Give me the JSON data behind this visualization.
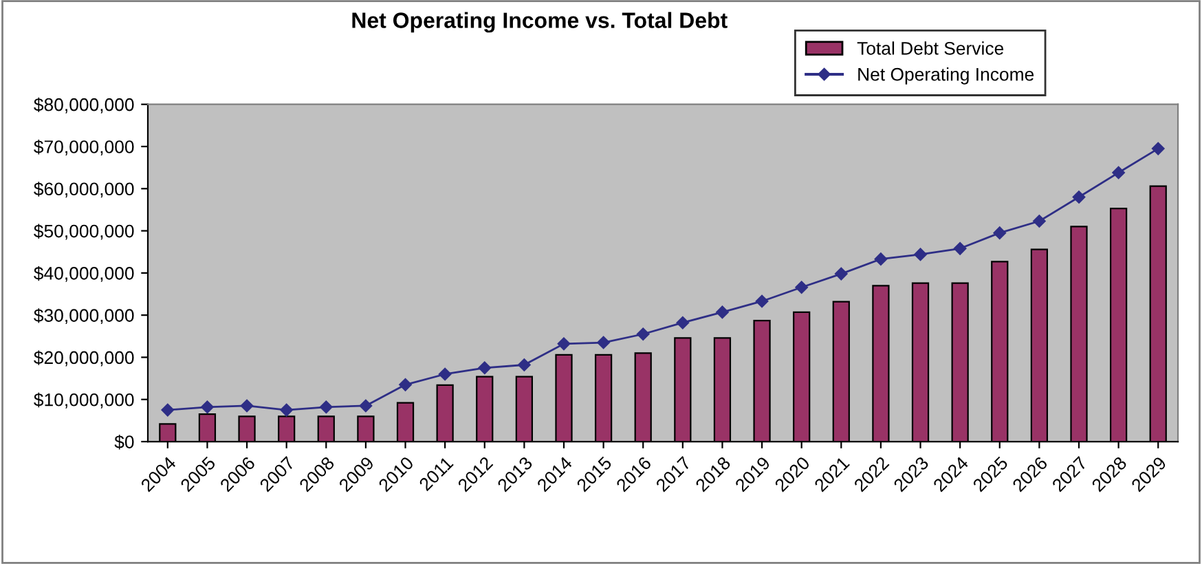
{
  "chart_data": {
    "type": "bar",
    "title": "Net Operating Income vs. Total Debt",
    "categories": [
      "2004",
      "2005",
      "2006",
      "2007",
      "2008",
      "2009",
      "2010",
      "2011",
      "2012",
      "2013",
      "2014",
      "2015",
      "2016",
      "2017",
      "2018",
      "2019",
      "2020",
      "2021",
      "2022",
      "2023",
      "2024",
      "2025",
      "2026",
      "2027",
      "2028",
      "2029"
    ],
    "series": [
      {
        "name": "Total Debt Service",
        "color": "#993366",
        "values": [
          4200000,
          6500000,
          6000000,
          6000000,
          6000000,
          6000000,
          9200000,
          13400000,
          15400000,
          15400000,
          20600000,
          20600000,
          21000000,
          24600000,
          24600000,
          28700000,
          30700000,
          33200000,
          37000000,
          37600000,
          37600000,
          42700000,
          45600000,
          51000000,
          55300000,
          60600000
        ]
      },
      {
        "name": "Net Operating Income",
        "type": "line",
        "color": "#2e2e86",
        "marker": "diamond",
        "values": [
          7500000,
          8200000,
          8500000,
          7500000,
          8200000,
          8500000,
          13500000,
          16000000,
          17500000,
          18200000,
          23200000,
          23500000,
          25500000,
          28200000,
          30700000,
          33300000,
          36600000,
          39800000,
          43300000,
          44400000,
          45800000,
          49500000,
          52300000,
          58000000,
          63800000,
          69500000
        ]
      }
    ],
    "ylim": [
      0,
      80000000
    ],
    "yticks": [
      {
        "value": 0,
        "label": "$0"
      },
      {
        "value": 10000000,
        "label": "$10,000,000"
      },
      {
        "value": 20000000,
        "label": "$20,000,000"
      },
      {
        "value": 30000000,
        "label": "$30,000,000"
      },
      {
        "value": 40000000,
        "label": "$40,000,000"
      },
      {
        "value": 50000000,
        "label": "$50,000,000"
      },
      {
        "value": 60000000,
        "label": "$60,000,000"
      },
      {
        "value": 70000000,
        "label": "$70,000,000"
      },
      {
        "value": 80000000,
        "label": "$80,000,000"
      }
    ],
    "grid": false,
    "legend": "top right"
  }
}
